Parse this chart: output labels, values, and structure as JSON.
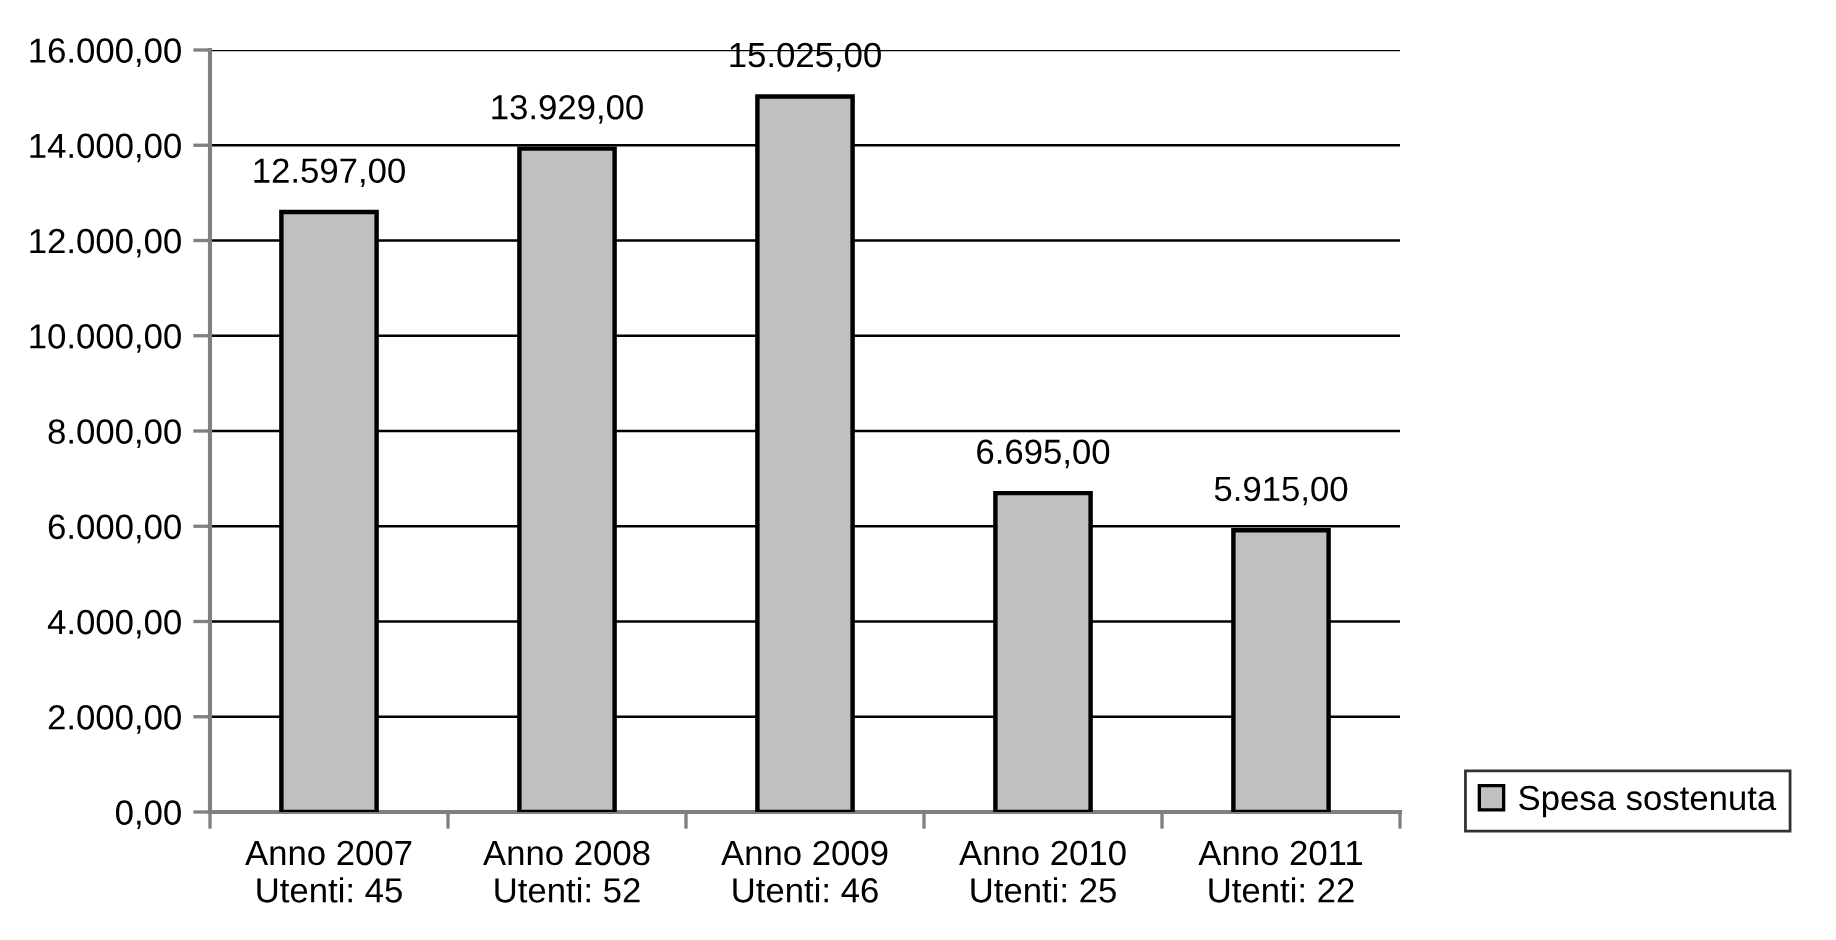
{
  "chart_data": {
    "type": "bar",
    "categories": [
      "Anno 2007\nUtenti: 45",
      "Anno 2008\nUtenti: 52",
      "Anno 2009\nUtenti: 46",
      "Anno 2010\nUtenti: 25",
      "Anno 2011\nUtenti: 22"
    ],
    "series": [
      {
        "name": "Spesa sostenuta",
        "color": "#c0c0c0",
        "values": [
          12597,
          13929,
          15025,
          6695,
          5915
        ],
        "value_labels": [
          "12.597,00",
          "13.929,00",
          "15.025,00",
          "6.695,00",
          "5.915,00"
        ]
      }
    ],
    "ylim": [
      0,
      16000
    ],
    "yticks": [
      {
        "value": 0,
        "label": "0,00"
      },
      {
        "value": 2000,
        "label": "2.000,00"
      },
      {
        "value": 4000,
        "label": "4.000,00"
      },
      {
        "value": 6000,
        "label": "6.000,00"
      },
      {
        "value": 8000,
        "label": "8.000,00"
      },
      {
        "value": 10000,
        "label": "10.000,00"
      },
      {
        "value": 12000,
        "label": "12.000,00"
      },
      {
        "value": 14000,
        "label": "14.000,00"
      },
      {
        "value": 16000,
        "label": "16.000,00"
      }
    ],
    "grid": "y",
    "legend": "right"
  }
}
